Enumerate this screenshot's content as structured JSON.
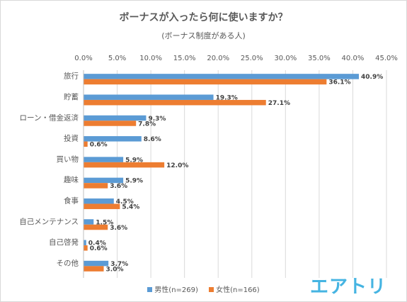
{
  "chart_data": {
    "type": "bar",
    "orientation": "horizontal",
    "title": "ボーナスが入ったら何に使いますか？",
    "subtitle": "(ボーナス制度がある人)",
    "categories": [
      "旅行",
      "貯蓄",
      "ローン・借金返済",
      "投資",
      "買い物",
      "趣味",
      "食事",
      "自己メンテナンス",
      "自己啓発",
      "その他"
    ],
    "x_ticks": [
      "0.0%",
      "5.0%",
      "10.0%",
      "15.0%",
      "20.0%",
      "25.0%",
      "30.0%",
      "35.0%",
      "40.0%",
      "45.0%"
    ],
    "xlim": [
      0,
      45
    ],
    "grid": true,
    "legend_position": "bottom",
    "series": [
      {
        "name": "男性(n=269)",
        "color": "#5b9bd5",
        "values": [
          40.9,
          19.3,
          9.3,
          8.6,
          5.9,
          5.9,
          4.5,
          1.5,
          0.4,
          3.7
        ],
        "labels": [
          "40.9%",
          "19.3%",
          "9.3%",
          "8.6%",
          "5.9%",
          "5.9%",
          "4.5%",
          "1.5%",
          "0.4%",
          "3.7%"
        ]
      },
      {
        "name": "女性(n=166)",
        "color": "#ed7d31",
        "values": [
          36.1,
          27.1,
          7.8,
          0.6,
          12.0,
          3.6,
          5.4,
          3.6,
          0.6,
          3.0
        ],
        "labels": [
          "36.1%",
          "27.1%",
          "7.8%",
          "0.6%",
          "12.0%",
          "3.6%",
          "5.4%",
          "3.6%",
          "0.6%",
          "3.0%"
        ]
      }
    ]
  },
  "logo": {
    "text": "エアトリ",
    "color": "#45b4e2"
  }
}
